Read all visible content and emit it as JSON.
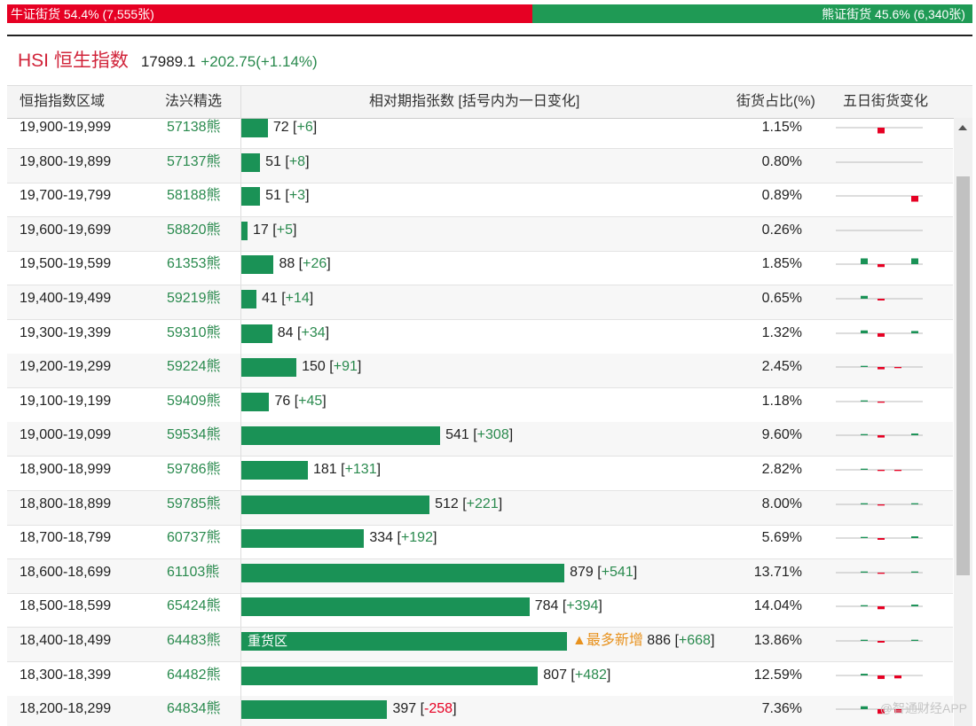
{
  "ratio": {
    "bull_label": "牛证街货 54.4% (7,555张)",
    "bear_label": "熊证街货 45.6% (6,340张)",
    "bull_fraction": 0.544,
    "bull_color": "#e60023",
    "bear_color": "#1f9a55"
  },
  "index": {
    "name": "HSI 恒生指数",
    "price": "17989.1",
    "change": "+202.75(+1.14%)"
  },
  "table": {
    "headers": [
      "恒指指数区域",
      "法兴精选",
      "相对期指张数 [括号内为一日变化]",
      "街货占比(%)",
      "五日街货变化"
    ],
    "max_count": 886,
    "rows": [
      {
        "range": "19,900-19,999",
        "code": "57138熊",
        "count": 72,
        "delta": "+6",
        "pct": "1.15%",
        "spark": [
          0,
          -1,
          0,
          0,
          3
        ]
      },
      {
        "range": "19,800-19,899",
        "code": "57137熊",
        "count": 51,
        "delta": "+8",
        "pct": "0.80%",
        "spark": [
          0,
          0,
          0,
          0,
          3
        ]
      },
      {
        "range": "19,700-19,799",
        "code": "58188熊",
        "count": 51,
        "delta": "+3",
        "pct": "0.89%",
        "spark": [
          0,
          0,
          0,
          -1,
          3
        ]
      },
      {
        "range": "19,600-19,699",
        "code": "58820熊",
        "count": 17,
        "delta": "+5",
        "pct": "0.26%",
        "spark": [
          0,
          0,
          0,
          0,
          3
        ]
      },
      {
        "range": "19,500-19,599",
        "code": "61353熊",
        "count": 88,
        "delta": "+26",
        "pct": "1.85%",
        "spark": [
          1,
          -0.5,
          0,
          1,
          2
        ]
      },
      {
        "range": "19,400-19,499",
        "code": "59219熊",
        "count": 41,
        "delta": "+14",
        "pct": "0.65%",
        "spark": [
          0.5,
          -0.3,
          0,
          0,
          2
        ]
      },
      {
        "range": "19,300-19,399",
        "code": "59310熊",
        "count": 84,
        "delta": "+34",
        "pct": "1.32%",
        "spark": [
          0.5,
          -0.6,
          0,
          0.4,
          2
        ]
      },
      {
        "range": "19,200-19,299",
        "code": "59224熊",
        "count": 150,
        "delta": "+91",
        "pct": "2.45%",
        "spark": [
          0.2,
          -0.4,
          -0.2,
          0,
          2
        ]
      },
      {
        "range": "19,100-19,199",
        "code": "59409熊",
        "count": 76,
        "delta": "+45",
        "pct": "1.18%",
        "spark": [
          0.2,
          -0.2,
          0,
          0,
          2
        ]
      },
      {
        "range": "19,000-19,099",
        "code": "59534熊",
        "count": 541,
        "delta": "+308",
        "pct": "9.60%",
        "spark": [
          0.2,
          -0.4,
          0,
          0.3,
          2
        ]
      },
      {
        "range": "18,900-18,999",
        "code": "59786熊",
        "count": 181,
        "delta": "+131",
        "pct": "2.82%",
        "spark": [
          0.2,
          -0.2,
          -0.2,
          0,
          2
        ]
      },
      {
        "range": "18,800-18,899",
        "code": "59785熊",
        "count": 512,
        "delta": "+221",
        "pct": "8.00%",
        "spark": [
          0.2,
          -0.2,
          0,
          0.2,
          2
        ]
      },
      {
        "range": "18,700-18,799",
        "code": "60737熊",
        "count": 334,
        "delta": "+192",
        "pct": "5.69%",
        "spark": [
          0.2,
          -0.3,
          0,
          0.3,
          2
        ]
      },
      {
        "range": "18,600-18,699",
        "code": "61103熊",
        "count": 879,
        "delta": "+541",
        "pct": "13.71%",
        "spark": [
          0.2,
          -0.2,
          0,
          0.2,
          2
        ]
      },
      {
        "range": "18,500-18,599",
        "code": "65424熊",
        "count": 784,
        "delta": "+394",
        "pct": "14.04%",
        "spark": [
          0.2,
          -0.5,
          0,
          0.3,
          2
        ]
      },
      {
        "range": "18,400-18,499",
        "code": "64483熊",
        "count": 886,
        "delta": "+668",
        "pct": "13.86%",
        "spark": [
          0.2,
          -0.3,
          0,
          0.2,
          2
        ],
        "badge": "重货区",
        "note": "▲最多新增"
      },
      {
        "range": "18,300-18,399",
        "code": "64482熊",
        "count": 807,
        "delta": "+482",
        "pct": "12.59%",
        "spark": [
          0.3,
          -0.6,
          -0.5,
          0,
          2
        ]
      },
      {
        "range": "18,200-18,299",
        "code": "64834熊",
        "count": 397,
        "delta": "-258",
        "pct": "7.36%",
        "spark": [
          0.5,
          -0.8,
          -0.6,
          0,
          -1.2
        ]
      }
    ]
  },
  "watermark": "@智通财经APP"
}
